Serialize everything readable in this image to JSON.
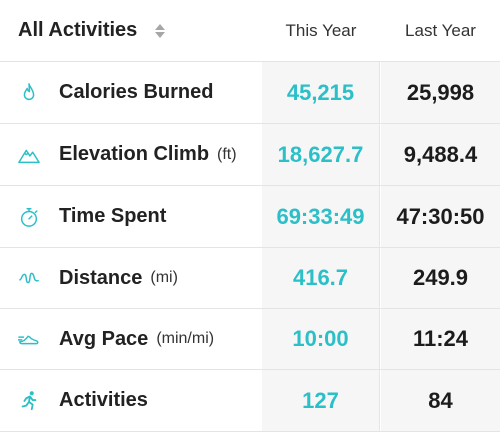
{
  "header": {
    "title": "All Activities",
    "this_year": "This Year",
    "last_year": "Last Year"
  },
  "rows": [
    {
      "icon": "flame-icon",
      "name": "Calories Burned",
      "unit": "",
      "this_year": "45,215",
      "last_year": "25,998"
    },
    {
      "icon": "mountain-icon",
      "name": "Elevation Climb",
      "unit": "(ft)",
      "this_year": "18,627.7",
      "last_year": "9,488.4"
    },
    {
      "icon": "stopwatch-icon",
      "name": "Time Spent",
      "unit": "",
      "this_year": "69:33:49",
      "last_year": "47:30:50"
    },
    {
      "icon": "route-icon",
      "name": "Distance",
      "unit": "(mi)",
      "this_year": "416.7",
      "last_year": "249.9"
    },
    {
      "icon": "shoe-icon",
      "name": "Avg Pace",
      "unit": "(min/mi)",
      "this_year": "10:00",
      "last_year": "11:24"
    },
    {
      "icon": "runner-icon",
      "name": "Activities",
      "unit": "",
      "this_year": "127",
      "last_year": "84"
    }
  ],
  "colors": {
    "accent": "#2bbfc8",
    "text": "#222222",
    "column_bg": "#f6f6f6"
  }
}
